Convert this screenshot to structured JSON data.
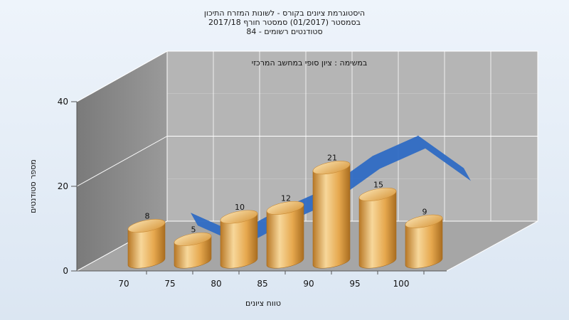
{
  "chart_data": {
    "type": "bar",
    "title": [
      "היסטוגרמת ציונים בקורס - לשונות המזרח התיכון",
      "בסמסטר  (01/2017)  סמסטר חורף  2017/18",
      "סטודנטים רשומים - 84"
    ],
    "subtitle": "במשימה : ציון סופי במחשב המרכזי",
    "xlabel": "טווח ציונים",
    "ylabel": "מספר סטודנטים",
    "categories": [
      "70",
      "75",
      "80",
      "85",
      "90",
      "95",
      "100"
    ],
    "values": [
      8,
      5,
      10,
      12,
      21,
      15,
      9
    ],
    "ylim": [
      0,
      40
    ],
    "yticks": [
      0,
      20,
      40
    ],
    "trend_line": [
      7,
      2,
      8,
      13,
      21,
      26,
      18
    ],
    "colors": {
      "bar": "#e6a84e",
      "bar_light": "#f7d79a",
      "bar_dark": "#b87826",
      "trend": "#2f6cc4",
      "back_wall": "#b5b5b5",
      "side_wall": "#8a8a8a",
      "floor": "#a6a6a6"
    }
  }
}
